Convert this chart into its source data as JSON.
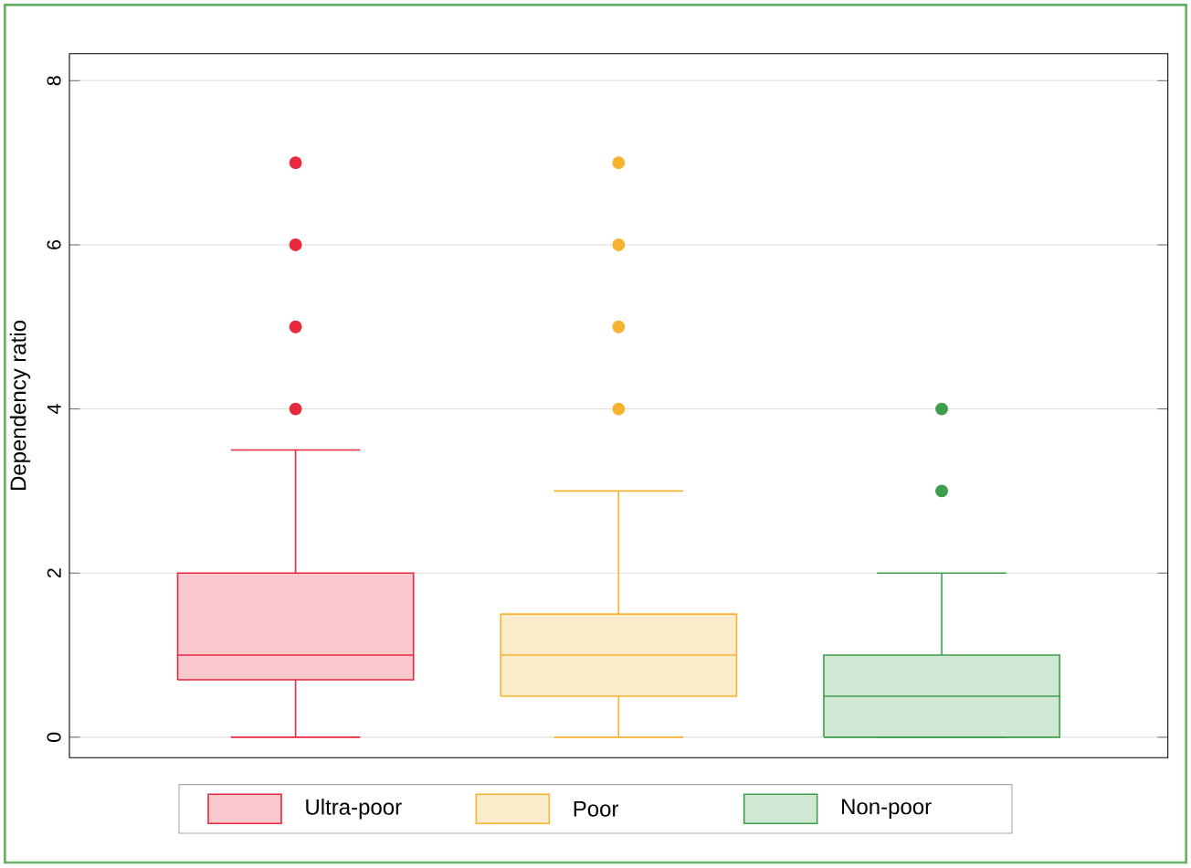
{
  "chart_data": {
    "type": "box",
    "ylabel": "Dependency ratio",
    "categories": [
      null,
      null,
      null
    ],
    "series": [
      {
        "name": "Ultra-poor",
        "color": "#e8283c",
        "boxes": [
          {
            "low": 0,
            "q1": 0.7,
            "median": 1,
            "q3": 2,
            "high": 3.5,
            "outliers": [
              4,
              5,
              6,
              7
            ]
          },
          null,
          null
        ]
      },
      {
        "name": "Poor",
        "color": "#f5b32f",
        "boxes": [
          null,
          {
            "low": 0,
            "q1": 0.5,
            "median": 1,
            "q3": 1.5,
            "high": 3,
            "outliers": [
              4,
              5,
              6,
              7
            ]
          },
          null
        ]
      },
      {
        "name": "Non-poor",
        "color": "#3e9e4e",
        "boxes": [
          null,
          null,
          {
            "low": 0,
            "q1": 0,
            "median": 0.5,
            "q3": 1,
            "high": 2,
            "outliers": [
              3,
              4
            ]
          }
        ]
      }
    ],
    "ylim": [
      -0.25,
      8.33
    ],
    "yticks": [
      0,
      2,
      4,
      6,
      8
    ],
    "grid": "y",
    "legend": "bottom"
  }
}
